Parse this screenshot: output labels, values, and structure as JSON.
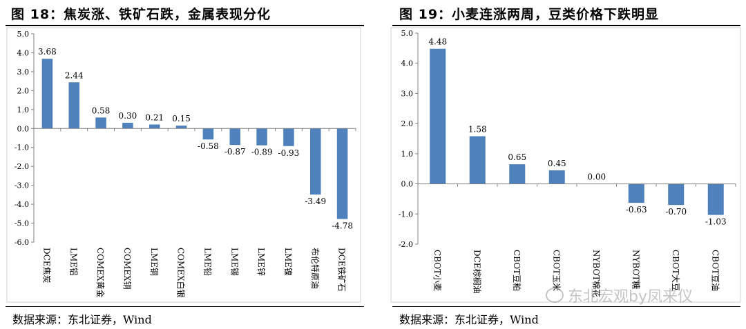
{
  "chart_data": [
    {
      "type": "bar",
      "title": "图 18：焦炭涨、铁矿石跌，金属表现分化",
      "categories": [
        "DCE焦炭",
        "LME铝",
        "COMEX黄金",
        "COMEX铜",
        "LME铜",
        "COMEX白银",
        "LME铅",
        "LME锡",
        "LME锌",
        "LME镍",
        "布伦特原油",
        "DCE铁矿石"
      ],
      "values": [
        3.68,
        2.44,
        0.58,
        0.3,
        0.21,
        0.15,
        -0.58,
        -0.87,
        -0.89,
        -0.93,
        -3.49,
        -4.78
      ],
      "value_labels": [
        "3.68",
        "2.44",
        "0.58",
        "0.30",
        "0.21",
        "0.15",
        "-0.58",
        "-0.87",
        "-0.89",
        "-0.93",
        "-3.49",
        "-4.78"
      ],
      "yticks": [
        "5.0",
        "4.0",
        "3.0",
        "2.0",
        "1.0",
        "0.0",
        "-1.0",
        "-2.0",
        "-3.0",
        "-4.0",
        "-5.0",
        "-6.0"
      ],
      "ylim": [
        -6,
        5
      ],
      "xlabel": "",
      "ylabel": "",
      "bar_color": "#4f81bd",
      "grid": false,
      "source": "数据来源：东北证券，Wind"
    },
    {
      "type": "bar",
      "title": "图 19：小麦连涨两周，豆类价格下跌明显",
      "categories": [
        "CBOT小麦",
        "DCE棕榈油",
        "CBOT豆粕",
        "CBOT玉米",
        "NYBOT棉花",
        "NYBOT糖",
        "CBOT大豆",
        "CBOT豆油"
      ],
      "values": [
        4.48,
        1.58,
        0.65,
        0.45,
        0.0,
        -0.63,
        -0.7,
        -1.03
      ],
      "value_labels": [
        "4.48",
        "1.58",
        "0.65",
        "0.45",
        "0.00",
        "-0.63",
        "-0.70",
        "-1.03"
      ],
      "yticks": [
        "5.0",
        "4.0",
        "3.0",
        "2.0",
        "1.0",
        "0.0",
        "-1.0",
        "-2.0"
      ],
      "ylim": [
        -2,
        5
      ],
      "xlabel": "",
      "ylabel": "",
      "bar_color": "#4f81bd",
      "grid": false,
      "source": "数据来源：东北证券，Wind"
    }
  ],
  "watermark": "东北宏观by凤来仪"
}
